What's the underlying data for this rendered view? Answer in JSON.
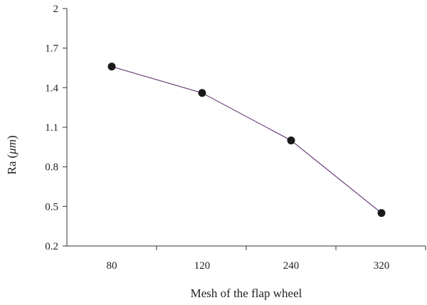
{
  "chart_data": {
    "type": "line",
    "title": "",
    "xlabel": "Mesh of the flap wheel",
    "ylabel_text": "Ra (",
    "ylabel_unit": "μm",
    "ylabel_close": ")",
    "categories": [
      "80",
      "120",
      "240",
      "320"
    ],
    "series": [
      {
        "values": [
          1.56,
          1.36,
          1.0,
          0.45
        ]
      }
    ],
    "ylim": [
      0.2,
      2
    ],
    "yticks": [
      "0.2",
      "0.5",
      "0.8",
      "1.1",
      "1.4",
      "1.7",
      "2"
    ],
    "grid": false,
    "legend": "none",
    "colors": {
      "line": "#6b3f7a",
      "marker": "#1a1a1a",
      "axis": "#333333"
    }
  }
}
